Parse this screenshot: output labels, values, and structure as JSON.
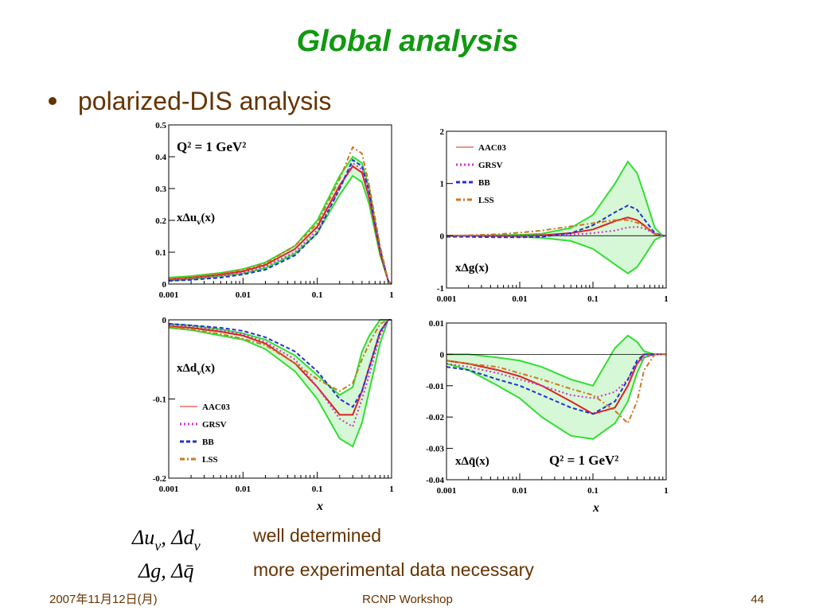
{
  "title": "Global analysis",
  "bullet": "polarized-DIS analysis",
  "notes": [
    {
      "formula": [
        "Δu",
        "v",
        ", Δd",
        "v"
      ],
      "text": "well determined"
    },
    {
      "formula": [
        "Δg, Δq̄"
      ],
      "text": "more experimental data necessary"
    }
  ],
  "footer": {
    "date": "2007年11月12日(月)",
    "event": "RCNP Workshop",
    "page": "44"
  },
  "chart_data": [
    {
      "type": "line",
      "xscale": "log",
      "xlim": [
        0.001,
        1
      ],
      "xticks": [
        0.001,
        0.01,
        0.1,
        1
      ],
      "ylim": [
        0,
        0.5
      ],
      "yticks": [
        0,
        0.1,
        0.2,
        0.3,
        0.4,
        0.5
      ],
      "zero_line": false,
      "annotations": [
        [
          "Q² = 1 GeV²"
        ],
        [
          "xΔu",
          "v",
          "(x)"
        ]
      ],
      "x": [
        0.001,
        0.002,
        0.005,
        0.01,
        0.02,
        0.05,
        0.1,
        0.2,
        0.3,
        0.4,
        0.5,
        0.7,
        0.9,
        1
      ],
      "band": {
        "color": "#33dd33",
        "upper": [
          0.02,
          0.025,
          0.035,
          0.047,
          0.068,
          0.12,
          0.2,
          0.34,
          0.4,
          0.38,
          0.3,
          0.11,
          0.01,
          0
        ],
        "lower": [
          0.01,
          0.015,
          0.025,
          0.033,
          0.05,
          0.095,
          0.16,
          0.28,
          0.34,
          0.32,
          0.25,
          0.09,
          0.01,
          0
        ]
      },
      "series": [
        {
          "color": "#dd2222",
          "style": "solid",
          "values": [
            0.015,
            0.02,
            0.03,
            0.04,
            0.06,
            0.11,
            0.18,
            0.31,
            0.37,
            0.35,
            0.27,
            0.1,
            0.01,
            0
          ]
        },
        {
          "color": "#cc33cc",
          "style": "dotted",
          "values": [
            0.012,
            0.016,
            0.025,
            0.035,
            0.055,
            0.1,
            0.17,
            0.3,
            0.38,
            0.36,
            0.28,
            0.11,
            0.01,
            0
          ]
        },
        {
          "color": "#2233cc",
          "style": "dashed",
          "values": [
            0.01,
            0.013,
            0.02,
            0.03,
            0.045,
            0.09,
            0.16,
            0.3,
            0.39,
            0.37,
            0.29,
            0.11,
            0.01,
            0
          ]
        },
        {
          "color": "#cc7722",
          "style": "dashdot",
          "values": [
            0.017,
            0.022,
            0.033,
            0.045,
            0.065,
            0.12,
            0.19,
            0.33,
            0.43,
            0.41,
            0.31,
            0.12,
            0.01,
            0
          ]
        }
      ]
    },
    {
      "type": "line",
      "xscale": "log",
      "xlim": [
        0.001,
        1
      ],
      "xticks": [
        0.001,
        0.01,
        0.1,
        1
      ],
      "ylim": [
        -1,
        2
      ],
      "yticks": [
        -1,
        0,
        1,
        2
      ],
      "zero_line": true,
      "legend": "upper left",
      "annotations": [
        [
          "xΔg(x)"
        ]
      ],
      "x": [
        0.001,
        0.002,
        0.005,
        0.01,
        0.02,
        0.05,
        0.1,
        0.2,
        0.3,
        0.4,
        0.5,
        0.7,
        0.9,
        1
      ],
      "band": {
        "color": "#33dd33",
        "upper": [
          0,
          0,
          0.01,
          0.02,
          0.04,
          0.15,
          0.4,
          1.0,
          1.42,
          1.2,
          0.8,
          0.15,
          0,
          0
        ],
        "lower": [
          0,
          0,
          -0.01,
          -0.02,
          -0.04,
          -0.1,
          -0.25,
          -0.55,
          -0.72,
          -0.6,
          -0.4,
          -0.08,
          0,
          0
        ]
      },
      "series": [
        {
          "name": "AAC03",
          "color": "#dd2222",
          "style": "solid",
          "values": [
            0,
            0,
            0,
            0,
            0.01,
            0.05,
            0.12,
            0.28,
            0.35,
            0.3,
            0.2,
            0.03,
            0,
            0
          ]
        },
        {
          "name": "GRSV",
          "color": "#cc33cc",
          "style": "dotted",
          "values": [
            0,
            0,
            0,
            0,
            0,
            0.02,
            0.05,
            0.1,
            0.16,
            0.17,
            0.14,
            0.04,
            0,
            0
          ]
        },
        {
          "name": "BB",
          "color": "#2233cc",
          "style": "dashed",
          "values": [
            -0.02,
            -0.02,
            -0.03,
            -0.03,
            -0.02,
            0.05,
            0.2,
            0.45,
            0.58,
            0.5,
            0.32,
            0.05,
            0,
            0
          ]
        },
        {
          "name": "LSS",
          "color": "#cc7722",
          "style": "dashdot",
          "values": [
            0,
            0.01,
            0.03,
            0.06,
            0.1,
            0.18,
            0.24,
            0.3,
            0.3,
            0.25,
            0.18,
            0.04,
            0,
            0
          ]
        }
      ]
    },
    {
      "type": "line",
      "xscale": "log",
      "xlim": [
        0.001,
        1
      ],
      "xticks": [
        0.001,
        0.01,
        0.1,
        1
      ],
      "xlabel": "x",
      "ylim": [
        -0.2,
        0
      ],
      "yticks": [
        -0.2,
        -0.1,
        0
      ],
      "zero_line": false,
      "legend": "lower left",
      "annotations": [
        [
          "xΔd",
          "v",
          "(x)"
        ]
      ],
      "x": [
        0.001,
        0.002,
        0.005,
        0.01,
        0.02,
        0.05,
        0.1,
        0.2,
        0.3,
        0.4,
        0.5,
        0.7,
        0.9,
        1
      ],
      "band": {
        "color": "#33dd33",
        "upper": [
          -0.005,
          -0.007,
          -0.012,
          -0.017,
          -0.025,
          -0.045,
          -0.07,
          -0.095,
          -0.085,
          -0.04,
          -0.02,
          0,
          0,
          0
        ],
        "lower": [
          -0.01,
          -0.013,
          -0.02,
          -0.025,
          -0.037,
          -0.065,
          -0.1,
          -0.15,
          -0.16,
          -0.13,
          -0.09,
          -0.03,
          0,
          0
        ]
      },
      "series": [
        {
          "name": "AAC03",
          "color": "#dd2222",
          "style": "solid",
          "values": [
            -0.008,
            -0.01,
            -0.015,
            -0.02,
            -0.03,
            -0.055,
            -0.085,
            -0.12,
            -0.12,
            -0.09,
            -0.06,
            -0.015,
            0,
            0
          ]
        },
        {
          "name": "GRSV",
          "color": "#cc33cc",
          "style": "dotted",
          "values": [
            -0.006,
            -0.008,
            -0.013,
            -0.018,
            -0.028,
            -0.05,
            -0.085,
            -0.125,
            -0.135,
            -0.1,
            -0.07,
            -0.02,
            0,
            0
          ]
        },
        {
          "name": "BB",
          "color": "#2233cc",
          "style": "dashed",
          "values": [
            -0.005,
            -0.007,
            -0.01,
            -0.014,
            -0.022,
            -0.04,
            -0.065,
            -0.1,
            -0.11,
            -0.09,
            -0.06,
            -0.015,
            0,
            0
          ]
        },
        {
          "name": "LSS",
          "color": "#cc7722",
          "style": "dashdot",
          "values": [
            -0.009,
            -0.012,
            -0.018,
            -0.024,
            -0.032,
            -0.055,
            -0.075,
            -0.09,
            -0.08,
            -0.05,
            -0.03,
            -0.005,
            0,
            0
          ]
        }
      ]
    },
    {
      "type": "line",
      "xscale": "log",
      "xlim": [
        0.001,
        1
      ],
      "xticks": [
        0.001,
        0.01,
        0.1,
        1
      ],
      "xlabel": "x",
      "ylim": [
        -0.04,
        0.01
      ],
      "yticks": [
        -0.04,
        -0.03,
        -0.02,
        -0.01,
        0,
        0.01
      ],
      "zero_line": true,
      "annotations": [
        [
          "xΔq̄(x)"
        ],
        [
          "Q² = 1 GeV²"
        ]
      ],
      "x": [
        0.001,
        0.002,
        0.005,
        0.01,
        0.02,
        0.05,
        0.1,
        0.2,
        0.3,
        0.4,
        0.5,
        0.7,
        0.9,
        1
      ],
      "band": {
        "color": "#33dd33",
        "upper": [
          0,
          0,
          -0.001,
          -0.002,
          -0.004,
          -0.008,
          -0.01,
          0.002,
          0.006,
          0.004,
          0.001,
          0,
          0,
          0
        ],
        "lower": [
          -0.003,
          -0.005,
          -0.01,
          -0.014,
          -0.02,
          -0.026,
          -0.027,
          -0.022,
          -0.015,
          -0.006,
          -0.001,
          0,
          0,
          0
        ]
      },
      "series": [
        {
          "color": "#dd2222",
          "style": "solid",
          "values": [
            -0.002,
            -0.003,
            -0.005,
            -0.007,
            -0.01,
            -0.015,
            -0.019,
            -0.017,
            -0.01,
            -0.003,
            0,
            0,
            0,
            0
          ]
        },
        {
          "color": "#cc33cc",
          "style": "dotted",
          "values": [
            -0.003,
            -0.004,
            -0.006,
            -0.008,
            -0.01,
            -0.013,
            -0.014,
            -0.012,
            -0.008,
            -0.003,
            -0.001,
            0,
            0,
            0
          ]
        },
        {
          "color": "#2233cc",
          "style": "dashed",
          "values": [
            -0.004,
            -0.005,
            -0.008,
            -0.01,
            -0.013,
            -0.017,
            -0.019,
            -0.015,
            -0.008,
            -0.002,
            0,
            0,
            0,
            0
          ]
        },
        {
          "color": "#cc7722",
          "style": "dashdot",
          "values": [
            -0.002,
            -0.003,
            -0.004,
            -0.006,
            -0.008,
            -0.011,
            -0.013,
            -0.018,
            -0.022,
            -0.015,
            -0.005,
            0,
            0,
            0
          ]
        }
      ]
    }
  ]
}
